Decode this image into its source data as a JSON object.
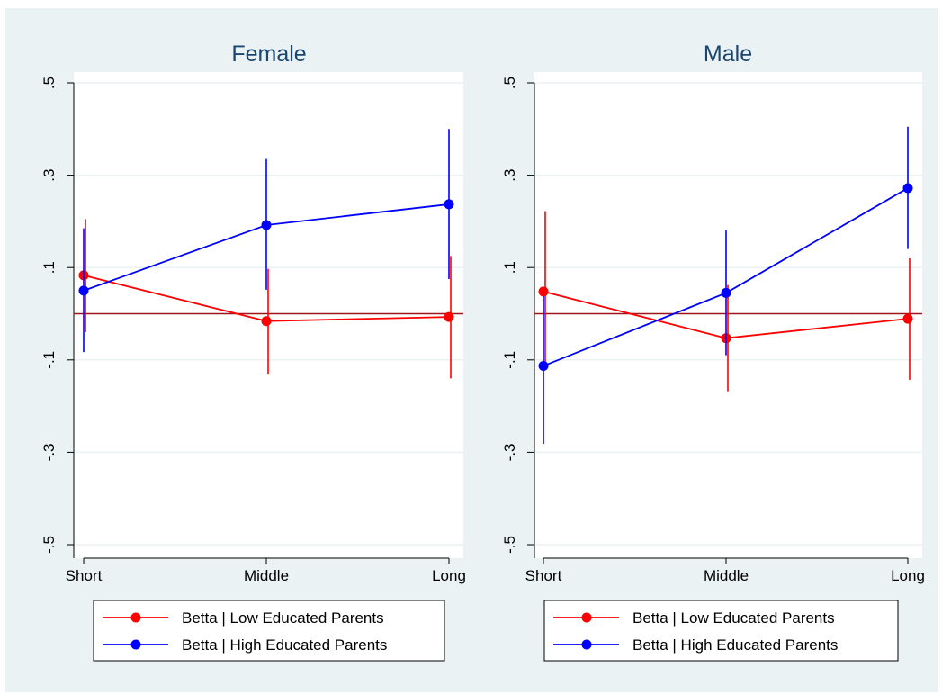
{
  "chart_data": [
    {
      "type": "line",
      "title": "Female",
      "categories": [
        "Short",
        "Middle",
        "Long"
      ],
      "yticks": [
        ".5",
        ".3",
        ".1",
        "-.1",
        "-.3",
        "-.5"
      ],
      "ylim": [
        -0.5,
        0.5
      ],
      "reference_line": 0,
      "grid": true,
      "legend_position": "bottom",
      "series": [
        {
          "name": "Betta | Low Educated Parents",
          "color": "#ff0000",
          "values": [
            0.083,
            -0.016,
            -0.007
          ],
          "ci_low": [
            -0.04,
            -0.13,
            -0.14
          ],
          "ci_high": [
            0.205,
            0.097,
            0.125
          ]
        },
        {
          "name": "Betta | High Educated Parents",
          "color": "#0000ff",
          "values": [
            0.05,
            0.192,
            0.237
          ],
          "ci_low": [
            -0.083,
            0.052,
            0.075
          ],
          "ci_high": [
            0.185,
            0.335,
            0.4
          ]
        }
      ]
    },
    {
      "type": "line",
      "title": "Male",
      "categories": [
        "Short",
        "Middle",
        "Long"
      ],
      "yticks": [
        ".5",
        ".3",
        ".1",
        "-.1",
        "-.3",
        "-.5"
      ],
      "ylim": [
        -0.5,
        0.5
      ],
      "reference_line": 0,
      "grid": true,
      "legend_position": "bottom",
      "series": [
        {
          "name": "Betta | Low Educated Parents",
          "color": "#ff0000",
          "values": [
            0.048,
            -0.053,
            -0.011
          ],
          "ci_low": [
            -0.115,
            -0.168,
            -0.143
          ],
          "ci_high": [
            0.222,
            0.062,
            0.12
          ]
        },
        {
          "name": "Betta | High Educated Parents",
          "color": "#0000ff",
          "values": [
            -0.113,
            0.045,
            0.272
          ],
          "ci_low": [
            -0.282,
            -0.09,
            0.14
          ],
          "ci_high": [
            0.038,
            0.18,
            0.405
          ]
        }
      ]
    }
  ]
}
